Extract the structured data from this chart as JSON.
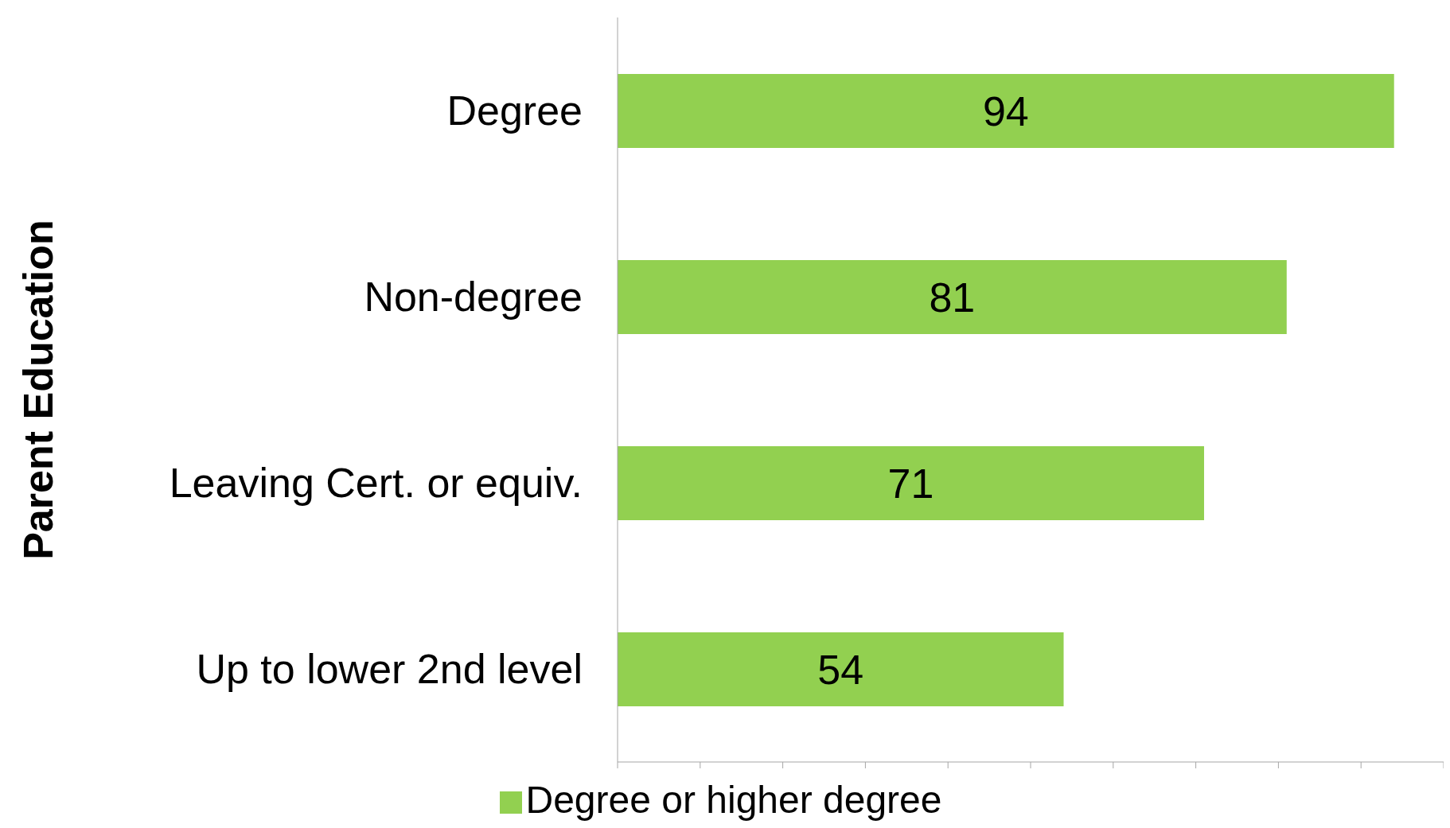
{
  "chart_data": {
    "type": "bar",
    "orientation": "horizontal",
    "ylabel": "Parent Education",
    "categories": [
      "Degree",
      "Non-degree",
      "Leaving Cert. or equiv.",
      "Up to lower 2nd level"
    ],
    "series": [
      {
        "name": "Degree or higher degree",
        "color": "#92d050",
        "values": [
          94,
          81,
          71,
          54
        ]
      }
    ],
    "xlim": [
      0,
      100
    ],
    "xticks": [
      {
        "value": 0,
        "label": null
      },
      {
        "value": 10,
        "label": null
      },
      {
        "value": 20,
        "label": null
      },
      {
        "value": 30,
        "label": null
      },
      {
        "value": 40,
        "label": null
      },
      {
        "value": 50,
        "label": null
      },
      {
        "value": 60,
        "label": null
      },
      {
        "value": 70,
        "label": null
      },
      {
        "value": 80,
        "label": null
      },
      {
        "value": 90,
        "label": null
      },
      {
        "value": 100,
        "label": null
      }
    ],
    "data_labels": true,
    "legend": "bottom",
    "grid": false
  }
}
